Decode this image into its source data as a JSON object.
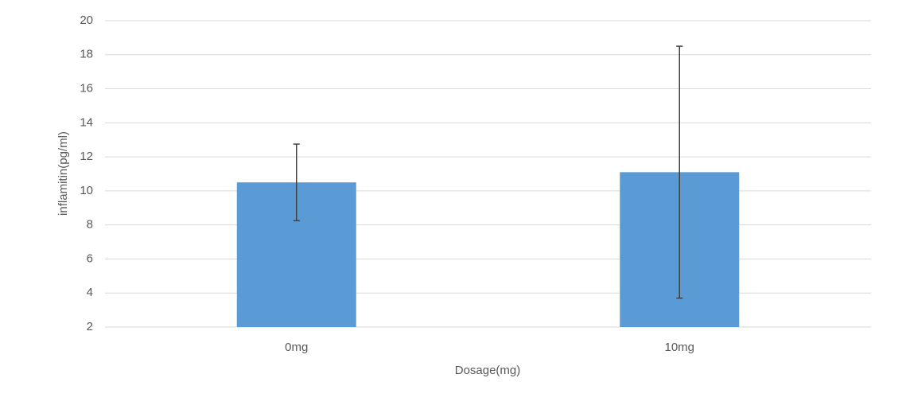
{
  "chart_data": {
    "type": "bar",
    "x_label": "Dosage(mg)",
    "y_label": "inflamitin(pg/ml)",
    "categories": [
      "0mg",
      "10mg"
    ],
    "values": [
      10.5,
      11.1
    ],
    "errors": [
      2.25,
      7.4
    ],
    "color": "#5b9bd5",
    "ylim": [
      2,
      20
    ],
    "yticks": [
      2,
      4,
      6,
      8,
      10,
      12,
      14,
      16,
      18,
      20
    ],
    "grid": true
  }
}
